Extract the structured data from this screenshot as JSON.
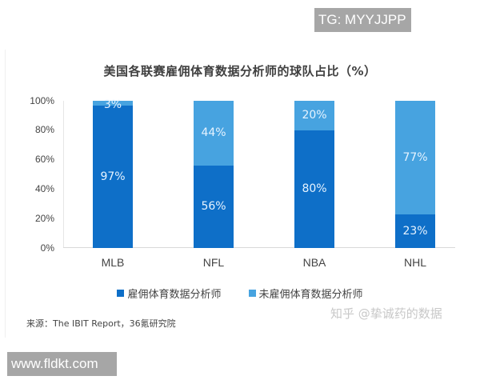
{
  "watermarks": {
    "top": "TG: MYYJJPP",
    "bottom": "www.fldkt.com",
    "zhihu": "知乎 @挚诚药的数据"
  },
  "chart_data": {
    "type": "bar",
    "stacked": true,
    "title": "美国各联赛雇佣体育数据分析师的球队占比（%）",
    "xlabel": "",
    "ylabel": "",
    "ylim": [
      0,
      100
    ],
    "yticks": [
      "0%",
      "20%",
      "40%",
      "60%",
      "80%",
      "100%"
    ],
    "categories": [
      "MLB",
      "NFL",
      "NBA",
      "NHL"
    ],
    "series": [
      {
        "name": "雇佣体育数据分析师",
        "color": "#0e6fc8",
        "values": [
          97,
          56,
          80,
          23
        ],
        "labels": [
          "97%",
          "56%",
          "80%",
          "23%"
        ]
      },
      {
        "name": "未雇佣体育数据分析师",
        "color": "#47a3e0",
        "values": [
          3,
          44,
          20,
          77
        ],
        "labels": [
          "3%",
          "44%",
          "20%",
          "77%"
        ]
      }
    ],
    "legend_position": "bottom",
    "grid": false,
    "source": "来源：The IBIT Report，36氪研究院"
  },
  "legend": {
    "items": [
      {
        "label": "雇佣体育数据分析师",
        "color": "#0e6fc8"
      },
      {
        "label": "未雇佣体育数据分析师",
        "color": "#47a3e0"
      }
    ]
  }
}
